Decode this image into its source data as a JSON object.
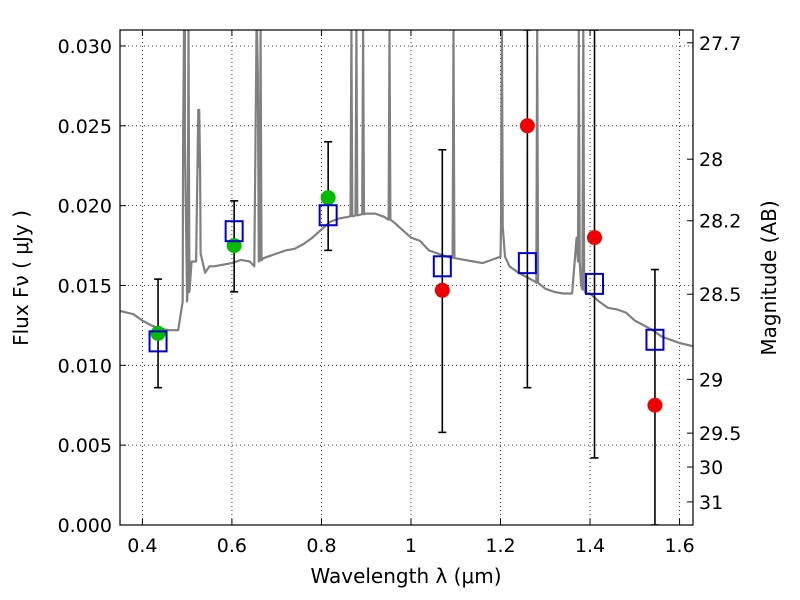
{
  "chart_data": {
    "type": "scatter",
    "xlabel": "Wavelength  λ (μm)",
    "ylabel": "Flux  Fν  ( μJy )",
    "ylabel_right": "Magnitude (AB)",
    "xlim": [
      0.35,
      1.63
    ],
    "ylim": [
      0.0,
      0.031
    ],
    "grid": true,
    "x_ticks": [
      {
        "value": 0.4,
        "label": "0.4"
      },
      {
        "value": 0.6,
        "label": "0.6"
      },
      {
        "value": 0.8,
        "label": "0.8"
      },
      {
        "value": 1.0,
        "label": "1"
      },
      {
        "value": 1.2,
        "label": "1.2"
      },
      {
        "value": 1.4,
        "label": "1.4"
      },
      {
        "value": 1.6,
        "label": "1.6"
      }
    ],
    "y_ticks": [
      {
        "value": 0.0,
        "label": "0.000"
      },
      {
        "value": 0.005,
        "label": "0.005"
      },
      {
        "value": 0.01,
        "label": "0.010"
      },
      {
        "value": 0.015,
        "label": "0.015"
      },
      {
        "value": 0.02,
        "label": "0.020"
      },
      {
        "value": 0.025,
        "label": "0.025"
      },
      {
        "value": 0.03,
        "label": "0.030"
      }
    ],
    "right_ticks": [
      {
        "value": 27.7,
        "label": "27.7"
      },
      {
        "value": 28,
        "label": "28"
      },
      {
        "value": 28.2,
        "label": "28.2"
      },
      {
        "value": 28.5,
        "label": "28.5"
      },
      {
        "value": 29,
        "label": "29"
      },
      {
        "value": 29.5,
        "label": "29.5"
      },
      {
        "value": 30,
        "label": "30"
      },
      {
        "value": 31,
        "label": "31"
      }
    ],
    "colors": {
      "template": "#808080",
      "model": "#0000cc",
      "obs_detected": "#00bb00",
      "obs_other": "#ee0000",
      "errorbar": "#000000"
    },
    "template_spectrum": {
      "x": [
        0.35,
        0.38,
        0.4,
        0.42,
        0.44,
        0.46,
        0.48,
        0.49,
        0.495,
        0.5,
        0.505,
        0.51,
        0.52,
        0.525,
        0.53,
        0.54,
        0.55,
        0.56,
        0.58,
        0.6,
        0.62,
        0.64,
        0.65,
        0.655,
        0.66,
        0.67,
        0.68,
        0.7,
        0.72,
        0.74,
        0.76,
        0.78,
        0.8,
        0.82,
        0.84,
        0.86,
        0.88,
        0.9,
        0.92,
        0.94,
        0.96,
        0.98,
        1.0,
        1.02,
        1.04,
        1.06,
        1.08,
        1.1,
        1.12,
        1.14,
        1.16,
        1.18,
        1.2,
        1.205,
        1.21,
        1.22,
        1.24,
        1.26,
        1.28,
        1.3,
        1.32,
        1.34,
        1.36,
        1.37,
        1.38,
        1.39,
        1.4,
        1.42,
        1.44,
        1.46,
        1.48,
        1.5,
        1.52,
        1.54,
        1.56,
        1.58,
        1.6,
        1.63
      ],
      "y": [
        0.0134,
        0.0132,
        0.0128,
        0.0125,
        0.0123,
        0.0122,
        0.0122,
        0.014,
        0.031,
        0.014,
        0.015,
        0.0165,
        0.0165,
        0.026,
        0.017,
        0.0158,
        0.0162,
        0.0162,
        0.0163,
        0.0164,
        0.0166,
        0.0165,
        0.0162,
        0.031,
        0.0165,
        0.0167,
        0.0168,
        0.017,
        0.0172,
        0.0173,
        0.0176,
        0.018,
        0.0185,
        0.019,
        0.0192,
        0.0193,
        0.0194,
        0.0195,
        0.0195,
        0.0193,
        0.019,
        0.0185,
        0.018,
        0.0178,
        0.0172,
        0.017,
        0.0168,
        0.0167,
        0.0166,
        0.0165,
        0.0164,
        0.0166,
        0.0168,
        0.02,
        0.0168,
        0.0162,
        0.0158,
        0.0155,
        0.0152,
        0.0148,
        0.0146,
        0.0145,
        0.0145,
        0.018,
        0.015,
        0.0145,
        0.0145,
        0.014,
        0.0136,
        0.0135,
        0.0133,
        0.0128,
        0.0125,
        0.0122,
        0.0118,
        0.0116,
        0.0114,
        0.0112
      ],
      "spikes": [
        {
          "x": 0.493,
          "y": 0.031
        },
        {
          "x": 0.503,
          "y": 0.031
        },
        {
          "x": 0.527,
          "y": 0.026
        },
        {
          "x": 0.656,
          "y": 0.031
        },
        {
          "x": 0.664,
          "y": 0.031
        },
        {
          "x": 0.867,
          "y": 0.031
        },
        {
          "x": 0.878,
          "y": 0.031
        },
        {
          "x": 0.893,
          "y": 0.031
        },
        {
          "x": 0.952,
          "y": 0.031
        },
        {
          "x": 1.095,
          "y": 0.031
        },
        {
          "x": 1.203,
          "y": 0.031
        },
        {
          "x": 1.282,
          "y": 0.031
        },
        {
          "x": 1.375,
          "y": 0.031
        },
        {
          "x": 1.385,
          "y": 0.031
        }
      ]
    },
    "model_photometry": {
      "x": [
        0.435,
        0.605,
        0.815,
        1.07,
        1.26,
        1.41,
        1.545
      ],
      "y": [
        0.0115,
        0.0184,
        0.0194,
        0.0162,
        0.0164,
        0.0151,
        0.0116
      ]
    },
    "observed_photometry": {
      "x": [
        0.435,
        0.605,
        0.815,
        1.07,
        1.26,
        1.41,
        1.545
      ],
      "y": [
        0.012,
        0.0175,
        0.0205,
        0.0147,
        0.025,
        0.018,
        0.0075
      ],
      "yerr_low": [
        0.0086,
        0.0146,
        0.0172,
        0.0058,
        0.0086,
        0.0042,
        0.0
      ],
      "yerr_high": [
        0.0154,
        0.0203,
        0.024,
        0.0235,
        0.031,
        0.031,
        0.016
      ],
      "color_class": [
        "detected",
        "detected",
        "detected",
        "other",
        "other",
        "other",
        "other"
      ]
    }
  }
}
